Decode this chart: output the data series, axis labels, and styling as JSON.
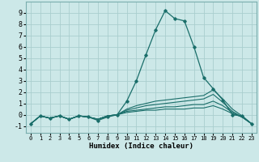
{
  "xlabel": "Humidex (Indice chaleur)",
  "ylabel": "",
  "background_color": "#cce8e8",
  "grid_color": "#aacece",
  "line_color": "#1a6e6a",
  "xlim": [
    -0.5,
    23.5
  ],
  "ylim": [
    -1.6,
    10.0
  ],
  "yticks": [
    -1,
    0,
    1,
    2,
    3,
    4,
    5,
    6,
    7,
    8,
    9
  ],
  "xticks": [
    0,
    1,
    2,
    3,
    4,
    5,
    6,
    7,
    8,
    9,
    10,
    11,
    12,
    13,
    14,
    15,
    16,
    17,
    18,
    19,
    20,
    21,
    22,
    23
  ],
  "series": [
    {
      "x": [
        0,
        1,
        2,
        3,
        4,
        5,
        6,
        7,
        8,
        9,
        10,
        11,
        12,
        13,
        14,
        15,
        16,
        17,
        18,
        19,
        20,
        21,
        22,
        23
      ],
      "y": [
        -0.8,
        -0.1,
        -0.3,
        -0.1,
        -0.4,
        -0.1,
        -0.2,
        -0.5,
        -0.2,
        0.0,
        1.2,
        3.0,
        5.3,
        7.5,
        9.2,
        8.5,
        8.3,
        6.0,
        3.3,
        2.3,
        1.3,
        0.0,
        -0.1,
        -0.8
      ],
      "marker": true
    },
    {
      "x": [
        0,
        1,
        2,
        3,
        4,
        5,
        6,
        7,
        8,
        9,
        10,
        11,
        12,
        13,
        14,
        15,
        16,
        17,
        18,
        19,
        20,
        21,
        22,
        23
      ],
      "y": [
        -0.8,
        -0.1,
        -0.3,
        -0.1,
        -0.4,
        -0.1,
        -0.2,
        -0.4,
        -0.1,
        0.0,
        0.5,
        0.8,
        1.0,
        1.2,
        1.3,
        1.4,
        1.5,
        1.6,
        1.7,
        2.2,
        1.4,
        0.5,
        -0.1,
        -0.8
      ],
      "marker": false
    },
    {
      "x": [
        0,
        1,
        2,
        3,
        4,
        5,
        6,
        7,
        8,
        9,
        10,
        11,
        12,
        13,
        14,
        15,
        16,
        17,
        18,
        19,
        20,
        21,
        22,
        23
      ],
      "y": [
        -0.8,
        -0.1,
        -0.3,
        -0.1,
        -0.4,
        -0.1,
        -0.2,
        -0.4,
        -0.1,
        0.0,
        0.4,
        0.6,
        0.8,
        0.9,
        1.0,
        1.1,
        1.2,
        1.3,
        1.4,
        1.8,
        1.1,
        0.3,
        -0.2,
        -0.8
      ],
      "marker": false
    },
    {
      "x": [
        0,
        1,
        2,
        3,
        4,
        5,
        6,
        7,
        8,
        9,
        10,
        11,
        12,
        13,
        14,
        15,
        16,
        17,
        18,
        19,
        20,
        21,
        22,
        23
      ],
      "y": [
        -0.8,
        -0.1,
        -0.3,
        -0.1,
        -0.4,
        -0.1,
        -0.2,
        -0.4,
        -0.1,
        0.0,
        0.3,
        0.4,
        0.5,
        0.6,
        0.7,
        0.7,
        0.8,
        0.9,
        0.9,
        1.2,
        0.8,
        0.2,
        -0.2,
        -0.8
      ],
      "marker": false
    },
    {
      "x": [
        0,
        1,
        2,
        3,
        4,
        5,
        6,
        7,
        8,
        9,
        10,
        11,
        12,
        13,
        14,
        15,
        16,
        17,
        18,
        19,
        20,
        21,
        22,
        23
      ],
      "y": [
        -0.8,
        -0.1,
        -0.3,
        -0.1,
        -0.4,
        -0.1,
        -0.2,
        -0.4,
        -0.1,
        0.0,
        0.2,
        0.3,
        0.4,
        0.4,
        0.5,
        0.5,
        0.5,
        0.6,
        0.6,
        0.8,
        0.5,
        0.1,
        -0.2,
        -0.8
      ],
      "marker": false
    }
  ]
}
